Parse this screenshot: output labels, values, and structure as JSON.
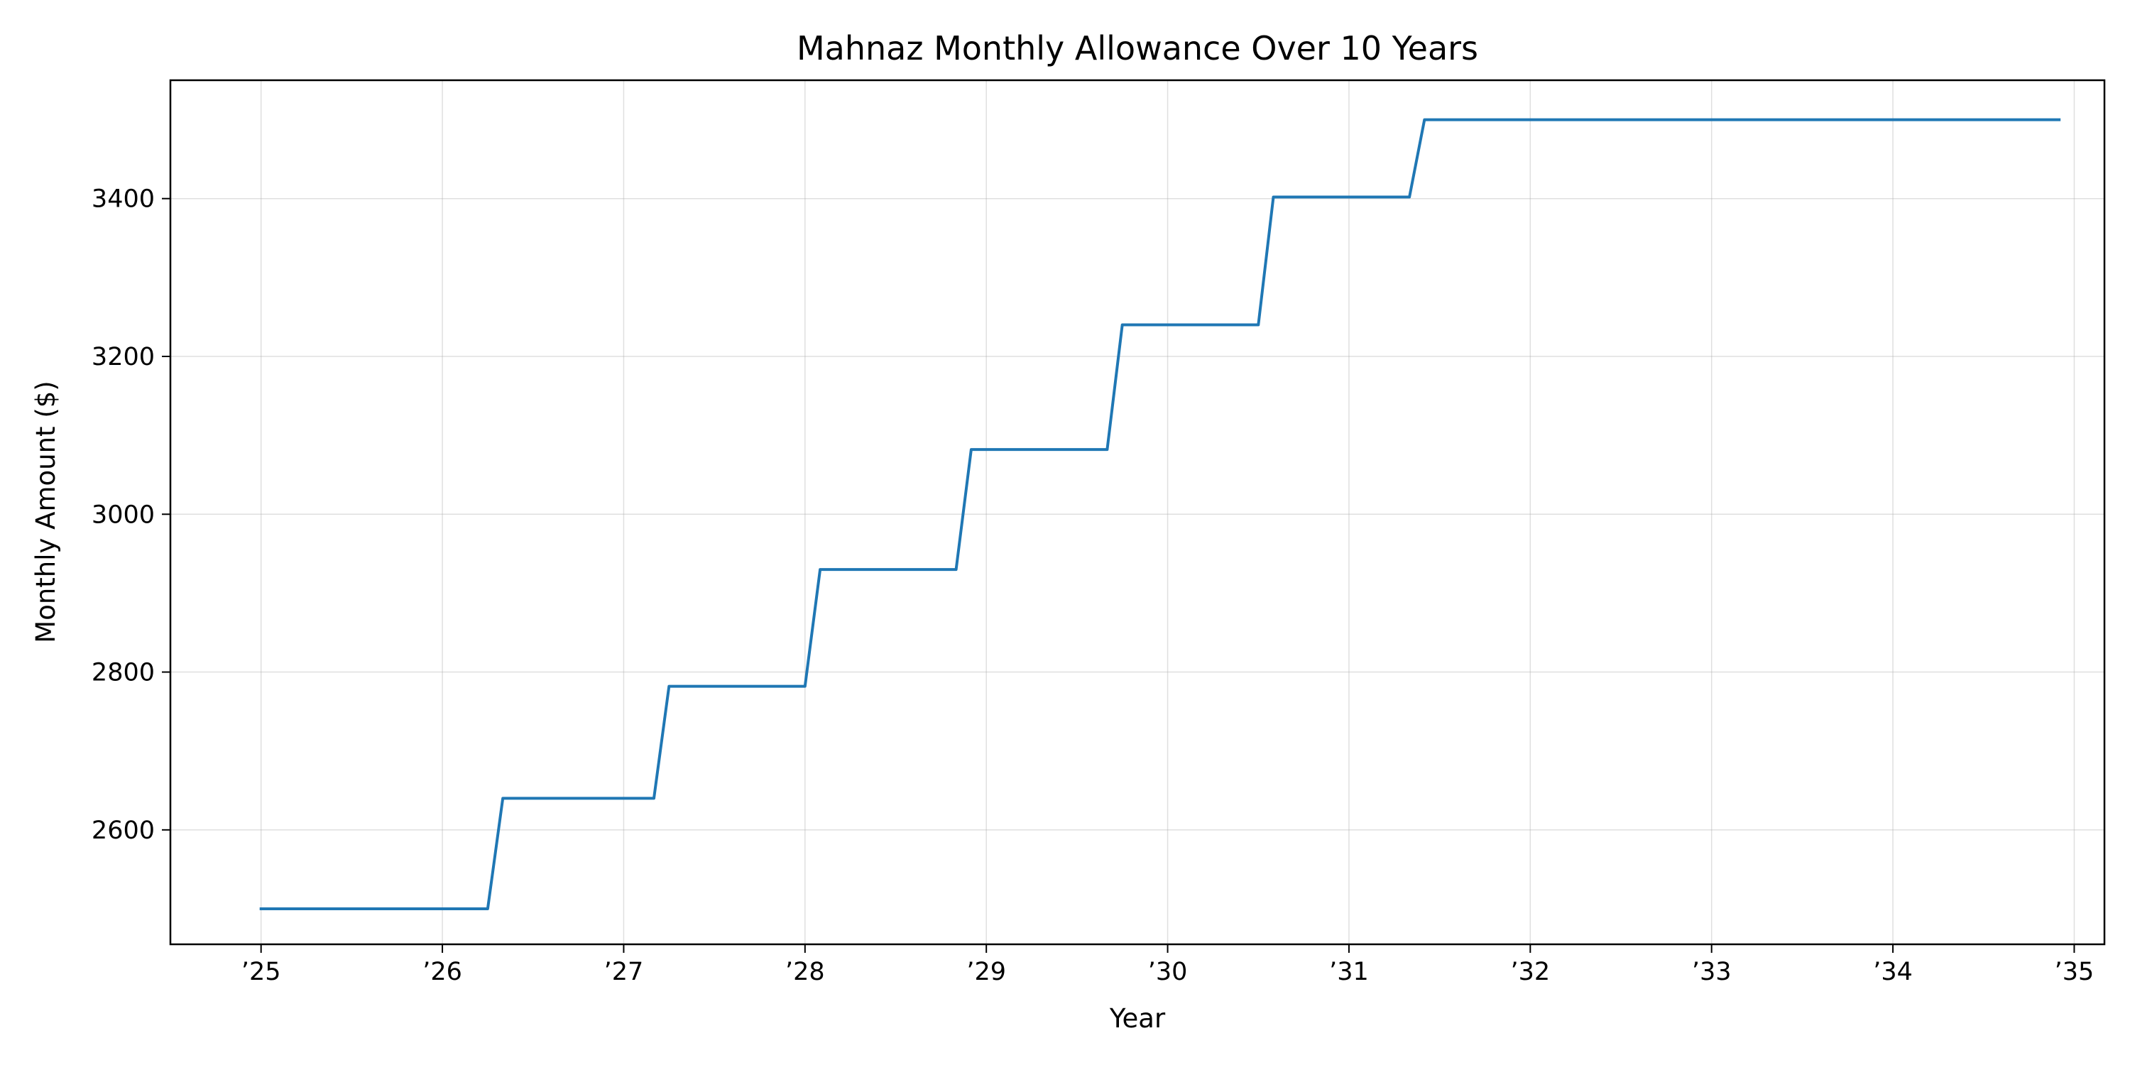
{
  "chart_data": {
    "type": "line",
    "title": "Mahnaz Monthly Allowance Over 10 Years",
    "xlabel": "Year",
    "ylabel": "Monthly Amount ($)",
    "xlim": [
      "2024-07",
      "2035-03"
    ],
    "ylim": [
      2455,
      3550
    ],
    "x_ticks": [
      {
        "label": "’25",
        "date": "2025-01"
      },
      {
        "label": "’26",
        "date": "2026-01"
      },
      {
        "label": "’27",
        "date": "2027-01"
      },
      {
        "label": "’28",
        "date": "2028-01"
      },
      {
        "label": "’29",
        "date": "2029-01"
      },
      {
        "label": "’30",
        "date": "2030-01"
      },
      {
        "label": "’31",
        "date": "2031-01"
      },
      {
        "label": "’32",
        "date": "2032-01"
      },
      {
        "label": "’33",
        "date": "2033-01"
      },
      {
        "label": "’34",
        "date": "2034-01"
      },
      {
        "label": "’35",
        "date": "2035-01"
      }
    ],
    "y_ticks": [
      2600,
      2800,
      3000,
      3200,
      3400
    ],
    "grid": true,
    "line_color": "#1f77b4",
    "series": [
      {
        "points": [
          {
            "x": "2025-01",
            "y": 2500
          },
          {
            "x": "2026-04",
            "y": 2500
          },
          {
            "x": "2026-05",
            "y": 2640
          },
          {
            "x": "2027-03",
            "y": 2640
          },
          {
            "x": "2027-04",
            "y": 2782
          },
          {
            "x": "2028-01",
            "y": 2782
          },
          {
            "x": "2028-02",
            "y": 2930
          },
          {
            "x": "2028-11",
            "y": 2930
          },
          {
            "x": "2028-12",
            "y": 3082
          },
          {
            "x": "2029-09",
            "y": 3082
          },
          {
            "x": "2029-10",
            "y": 3240
          },
          {
            "x": "2030-07",
            "y": 3240
          },
          {
            "x": "2030-08",
            "y": 3402
          },
          {
            "x": "2031-05",
            "y": 3402
          },
          {
            "x": "2031-06",
            "y": 3500
          },
          {
            "x": "2034-12",
            "y": 3500
          }
        ]
      }
    ]
  }
}
